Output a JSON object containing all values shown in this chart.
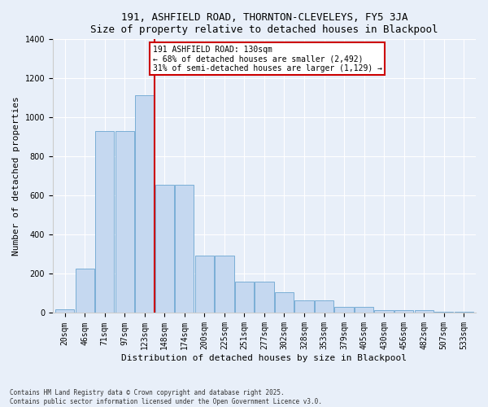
{
  "title": "191, ASHFIELD ROAD, THORNTON-CLEVELEYS, FY5 3JA",
  "subtitle": "Size of property relative to detached houses in Blackpool",
  "xlabel": "Distribution of detached houses by size in Blackpool",
  "ylabel": "Number of detached properties",
  "footnote": "Contains HM Land Registry data © Crown copyright and database right 2025.\nContains public sector information licensed under the Open Government Licence v3.0.",
  "bar_labels": [
    "20sqm",
    "46sqm",
    "71sqm",
    "97sqm",
    "123sqm",
    "148sqm",
    "174sqm",
    "200sqm",
    "225sqm",
    "251sqm",
    "277sqm",
    "302sqm",
    "328sqm",
    "353sqm",
    "379sqm",
    "405sqm",
    "430sqm",
    "456sqm",
    "482sqm",
    "507sqm",
    "533sqm"
  ],
  "bar_values": [
    20,
    225,
    930,
    930,
    1115,
    655,
    655,
    295,
    295,
    160,
    160,
    105,
    65,
    65,
    30,
    30,
    15,
    15,
    15,
    5,
    5
  ],
  "bar_color": "#c5d8f0",
  "bar_edge_color": "#7aaed6",
  "background_color": "#e8eff9",
  "vline_color": "#cc0000",
  "vline_x": 4.5,
  "annotation_text": "191 ASHFIELD ROAD: 130sqm\n← 68% of detached houses are smaller (2,492)\n31% of semi-detached houses are larger (1,129) →",
  "annotation_box_color": "#cc0000",
  "ylim": [
    0,
    1400
  ],
  "yticks": [
    0,
    200,
    400,
    600,
    800,
    1000,
    1200,
    1400
  ],
  "title_fontsize": 9,
  "subtitle_fontsize": 8.5,
  "axis_label_fontsize": 8,
  "tick_fontsize": 7
}
